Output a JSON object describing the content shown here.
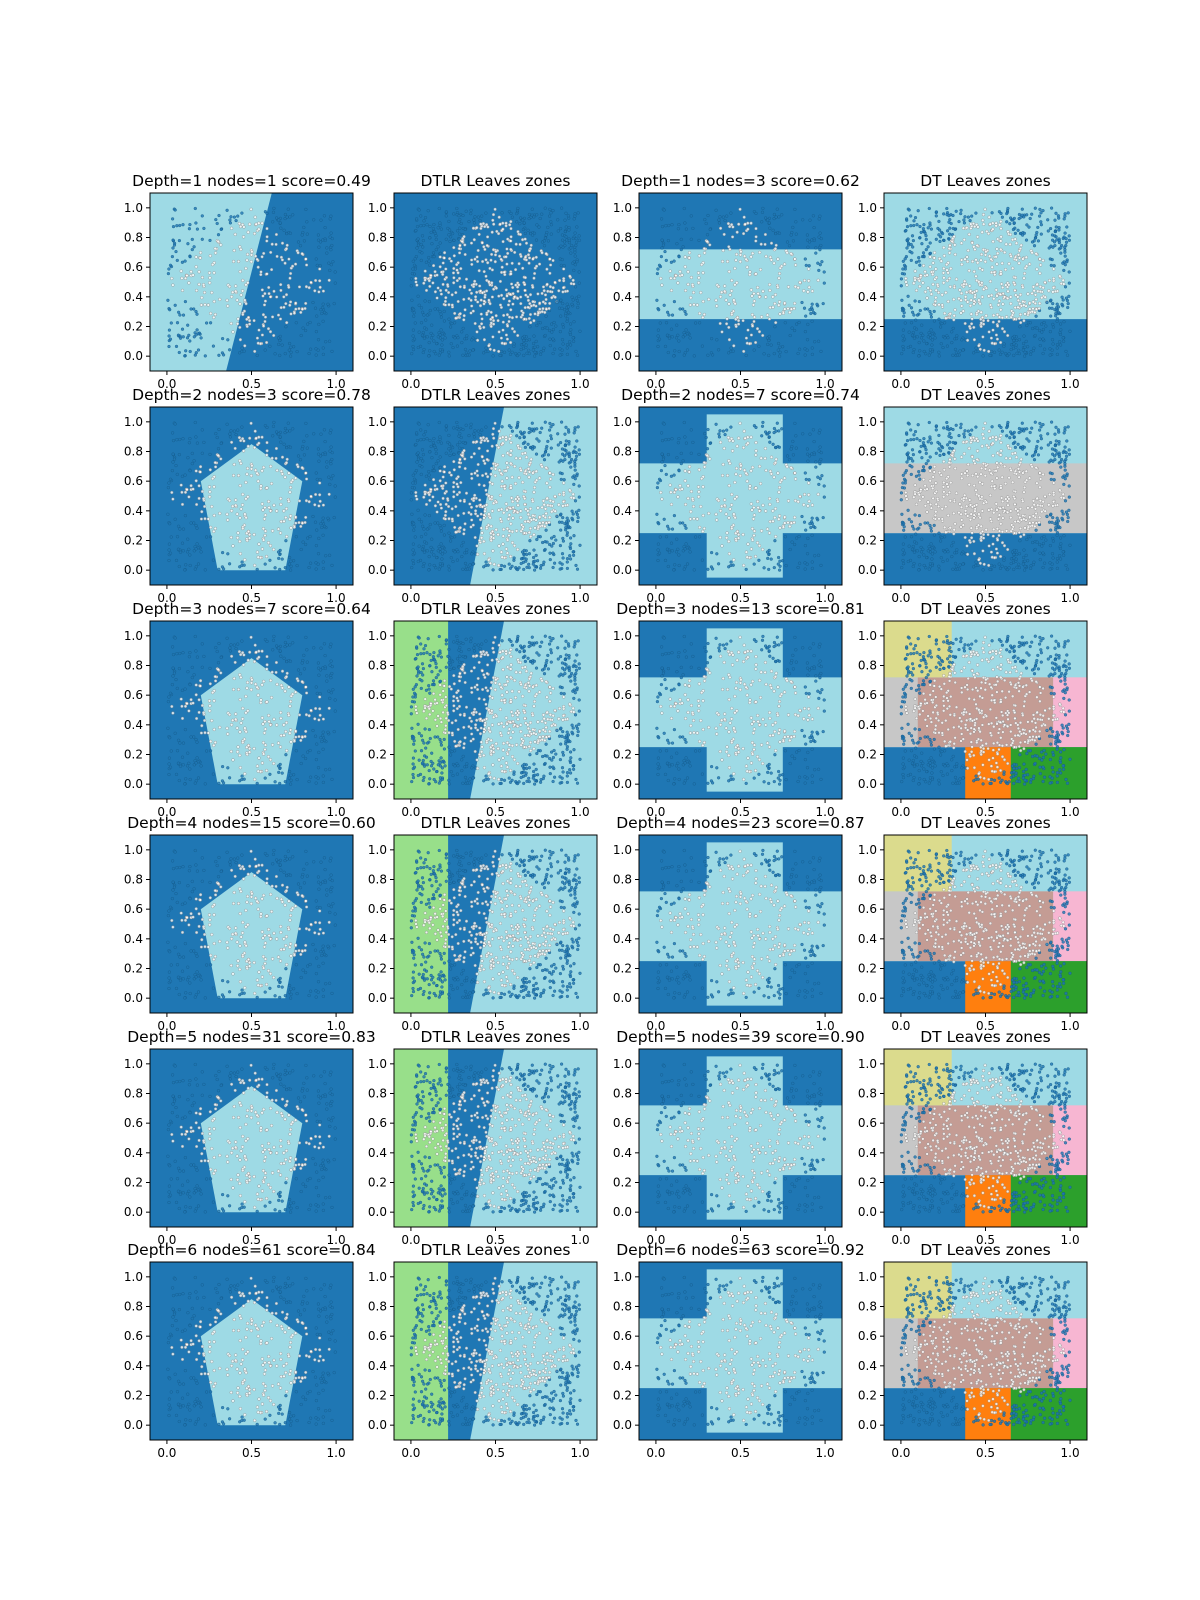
{
  "colors": {
    "dark_blue": "#1f77b4",
    "light_blue": "#9edae5",
    "dtlr_green": "#98df8a",
    "dt_grey": "#c7c7c7",
    "dt_rose": "#c49c94",
    "dt_olive": "#dbdb8d",
    "dt_pink": "#f7b6d2",
    "dt_orange": "#ff7f0e",
    "dt_green": "#2ca02c"
  },
  "chart_data": [
    {
      "type": "heatmap",
      "title": "Depth=1 nodes=1 score=0.49",
      "x_ticks": [
        "0.0",
        "0.5",
        "1.0"
      ],
      "y_ticks": [
        "0.0",
        "0.2",
        "0.4",
        "0.6",
        "0.8",
        "1.0"
      ],
      "xlim": [
        -0.1,
        1.1
      ],
      "ylim": [
        -0.1,
        1.1
      ],
      "legend": "none",
      "grid": false
    },
    {
      "type": "heatmap",
      "title": "DTLR Leaves zones",
      "x_ticks": [
        "0.0",
        "0.5",
        "1.0"
      ],
      "y_ticks": [
        "0.0",
        "0.2",
        "0.4",
        "0.6",
        "0.8",
        "1.0"
      ],
      "xlim": [
        -0.1,
        1.1
      ],
      "ylim": [
        -0.1,
        1.1
      ],
      "legend": "none",
      "grid": false
    },
    {
      "type": "heatmap",
      "title": "Depth=1 nodes=3 score=0.62",
      "x_ticks": [
        "0.0",
        "0.5",
        "1.0"
      ],
      "y_ticks": [
        "0.0",
        "0.2",
        "0.4",
        "0.6",
        "0.8",
        "1.0"
      ],
      "xlim": [
        -0.1,
        1.1
      ],
      "ylim": [
        -0.1,
        1.1
      ],
      "legend": "none",
      "grid": false
    },
    {
      "type": "heatmap",
      "title": "DT Leaves zones",
      "x_ticks": [
        "0.0",
        "0.5",
        "1.0"
      ],
      "y_ticks": [
        "0.0",
        "0.2",
        "0.4",
        "0.6",
        "0.8",
        "1.0"
      ],
      "xlim": [
        -0.1,
        1.1
      ],
      "ylim": [
        -0.1,
        1.1
      ],
      "legend": "none",
      "grid": false
    },
    {
      "type": "heatmap",
      "title": "Depth=2 nodes=3 score=0.78",
      "x_ticks": [
        "0.0",
        "0.5",
        "1.0"
      ],
      "y_ticks": [
        "0.0",
        "0.2",
        "0.4",
        "0.6",
        "0.8",
        "1.0"
      ],
      "xlim": [
        -0.1,
        1.1
      ],
      "ylim": [
        -0.1,
        1.1
      ],
      "legend": "none",
      "grid": false
    },
    {
      "type": "heatmap",
      "title": "DTLR Leaves zones",
      "x_ticks": [
        "0.0",
        "0.5",
        "1.0"
      ],
      "y_ticks": [
        "0.0",
        "0.2",
        "0.4",
        "0.6",
        "0.8",
        "1.0"
      ],
      "xlim": [
        -0.1,
        1.1
      ],
      "ylim": [
        -0.1,
        1.1
      ],
      "legend": "none",
      "grid": false
    },
    {
      "type": "heatmap",
      "title": "Depth=2 nodes=7 score=0.74",
      "x_ticks": [
        "0.0",
        "0.5",
        "1.0"
      ],
      "y_ticks": [
        "0.0",
        "0.2",
        "0.4",
        "0.6",
        "0.8",
        "1.0"
      ],
      "xlim": [
        -0.1,
        1.1
      ],
      "ylim": [
        -0.1,
        1.1
      ],
      "legend": "none",
      "grid": false
    },
    {
      "type": "heatmap",
      "title": "DT Leaves zones",
      "x_ticks": [
        "0.0",
        "0.5",
        "1.0"
      ],
      "y_ticks": [
        "0.0",
        "0.2",
        "0.4",
        "0.6",
        "0.8",
        "1.0"
      ],
      "xlim": [
        -0.1,
        1.1
      ],
      "ylim": [
        -0.1,
        1.1
      ],
      "legend": "none",
      "grid": false
    },
    {
      "type": "heatmap",
      "title": "Depth=3 nodes=7 score=0.64",
      "x_ticks": [
        "0.0",
        "0.5",
        "1.0"
      ],
      "y_ticks": [
        "0.0",
        "0.2",
        "0.4",
        "0.6",
        "0.8",
        "1.0"
      ],
      "xlim": [
        -0.1,
        1.1
      ],
      "ylim": [
        -0.1,
        1.1
      ],
      "legend": "none",
      "grid": false
    },
    {
      "type": "heatmap",
      "title": "DTLR Leaves zones",
      "x_ticks": [
        "0.0",
        "0.5",
        "1.0"
      ],
      "y_ticks": [
        "0.0",
        "0.2",
        "0.4",
        "0.6",
        "0.8",
        "1.0"
      ],
      "xlim": [
        -0.1,
        1.1
      ],
      "ylim": [
        -0.1,
        1.1
      ],
      "legend": "none",
      "grid": false
    },
    {
      "type": "heatmap",
      "title": "Depth=3 nodes=13 score=0.81",
      "x_ticks": [
        "0.0",
        "0.5",
        "1.0"
      ],
      "y_ticks": [
        "0.0",
        "0.2",
        "0.4",
        "0.6",
        "0.8",
        "1.0"
      ],
      "xlim": [
        -0.1,
        1.1
      ],
      "ylim": [
        -0.1,
        1.1
      ],
      "legend": "none",
      "grid": false
    },
    {
      "type": "heatmap",
      "title": "DT Leaves zones",
      "x_ticks": [
        "0.0",
        "0.5",
        "1.0"
      ],
      "y_ticks": [
        "0.0",
        "0.2",
        "0.4",
        "0.6",
        "0.8",
        "1.0"
      ],
      "xlim": [
        -0.1,
        1.1
      ],
      "ylim": [
        -0.1,
        1.1
      ],
      "legend": "none",
      "grid": false
    },
    {
      "type": "heatmap",
      "title": "Depth=4 nodes=15 score=0.60",
      "x_ticks": [
        "0.0",
        "0.5",
        "1.0"
      ],
      "y_ticks": [
        "0.0",
        "0.2",
        "0.4",
        "0.6",
        "0.8",
        "1.0"
      ],
      "xlim": [
        -0.1,
        1.1
      ],
      "ylim": [
        -0.1,
        1.1
      ],
      "legend": "none",
      "grid": false
    },
    {
      "type": "heatmap",
      "title": "DTLR Leaves zones",
      "x_ticks": [
        "0.0",
        "0.5",
        "1.0"
      ],
      "y_ticks": [
        "0.0",
        "0.2",
        "0.4",
        "0.6",
        "0.8",
        "1.0"
      ],
      "xlim": [
        -0.1,
        1.1
      ],
      "ylim": [
        -0.1,
        1.1
      ],
      "legend": "none",
      "grid": false
    },
    {
      "type": "heatmap",
      "title": "Depth=4 nodes=23 score=0.87",
      "x_ticks": [
        "0.0",
        "0.5",
        "1.0"
      ],
      "y_ticks": [
        "0.0",
        "0.2",
        "0.4",
        "0.6",
        "0.8",
        "1.0"
      ],
      "xlim": [
        -0.1,
        1.1
      ],
      "ylim": [
        -0.1,
        1.1
      ],
      "legend": "none",
      "grid": false
    },
    {
      "type": "heatmap",
      "title": "DT Leaves zones",
      "x_ticks": [
        "0.0",
        "0.5",
        "1.0"
      ],
      "y_ticks": [
        "0.0",
        "0.2",
        "0.4",
        "0.6",
        "0.8",
        "1.0"
      ],
      "xlim": [
        -0.1,
        1.1
      ],
      "ylim": [
        -0.1,
        1.1
      ],
      "legend": "none",
      "grid": false
    },
    {
      "type": "heatmap",
      "title": "Depth=5 nodes=31 score=0.83",
      "x_ticks": [
        "0.0",
        "0.5",
        "1.0"
      ],
      "y_ticks": [
        "0.0",
        "0.2",
        "0.4",
        "0.6",
        "0.8",
        "1.0"
      ],
      "xlim": [
        -0.1,
        1.1
      ],
      "ylim": [
        -0.1,
        1.1
      ],
      "legend": "none",
      "grid": false
    },
    {
      "type": "heatmap",
      "title": "DTLR Leaves zones",
      "x_ticks": [
        "0.0",
        "0.5",
        "1.0"
      ],
      "y_ticks": [
        "0.0",
        "0.2",
        "0.4",
        "0.6",
        "0.8",
        "1.0"
      ],
      "xlim": [
        -0.1,
        1.1
      ],
      "ylim": [
        -0.1,
        1.1
      ],
      "legend": "none",
      "grid": false
    },
    {
      "type": "heatmap",
      "title": "Depth=5 nodes=39 score=0.90",
      "x_ticks": [
        "0.0",
        "0.5",
        "1.0"
      ],
      "y_ticks": [
        "0.0",
        "0.2",
        "0.4",
        "0.6",
        "0.8",
        "1.0"
      ],
      "xlim": [
        -0.1,
        1.1
      ],
      "ylim": [
        -0.1,
        1.1
      ],
      "legend": "none",
      "grid": false
    },
    {
      "type": "heatmap",
      "title": "DT Leaves zones",
      "x_ticks": [
        "0.0",
        "0.5",
        "1.0"
      ],
      "y_ticks": [
        "0.0",
        "0.2",
        "0.4",
        "0.6",
        "0.8",
        "1.0"
      ],
      "xlim": [
        -0.1,
        1.1
      ],
      "ylim": [
        -0.1,
        1.1
      ],
      "legend": "none",
      "grid": false
    },
    {
      "type": "heatmap",
      "title": "Depth=6 nodes=61 score=0.84",
      "x_ticks": [
        "0.0",
        "0.5",
        "1.0"
      ],
      "y_ticks": [
        "0.0",
        "0.2",
        "0.4",
        "0.6",
        "0.8",
        "1.0"
      ],
      "xlim": [
        -0.1,
        1.1
      ],
      "ylim": [
        -0.1,
        1.1
      ],
      "legend": "none",
      "grid": false
    },
    {
      "type": "heatmap",
      "title": "DTLR Leaves zones",
      "x_ticks": [
        "0.0",
        "0.5",
        "1.0"
      ],
      "y_ticks": [
        "0.0",
        "0.2",
        "0.4",
        "0.6",
        "0.8",
        "1.0"
      ],
      "xlim": [
        -0.1,
        1.1
      ],
      "ylim": [
        -0.1,
        1.1
      ],
      "legend": "none",
      "grid": false
    },
    {
      "type": "heatmap",
      "title": "Depth=6 nodes=63 score=0.92",
      "x_ticks": [
        "0.0",
        "0.5",
        "1.0"
      ],
      "y_ticks": [
        "0.0",
        "0.2",
        "0.4",
        "0.6",
        "0.8",
        "1.0"
      ],
      "xlim": [
        -0.1,
        1.1
      ],
      "ylim": [
        -0.1,
        1.1
      ],
      "legend": "none",
      "grid": false
    },
    {
      "type": "heatmap",
      "title": "DT Leaves zones",
      "x_ticks": [
        "0.0",
        "0.5",
        "1.0"
      ],
      "y_ticks": [
        "0.0",
        "0.2",
        "0.4",
        "0.6",
        "0.8",
        "1.0"
      ],
      "xlim": [
        -0.1,
        1.1
      ],
      "ylim": [
        -0.1,
        1.1
      ],
      "legend": "none",
      "grid": false
    }
  ]
}
